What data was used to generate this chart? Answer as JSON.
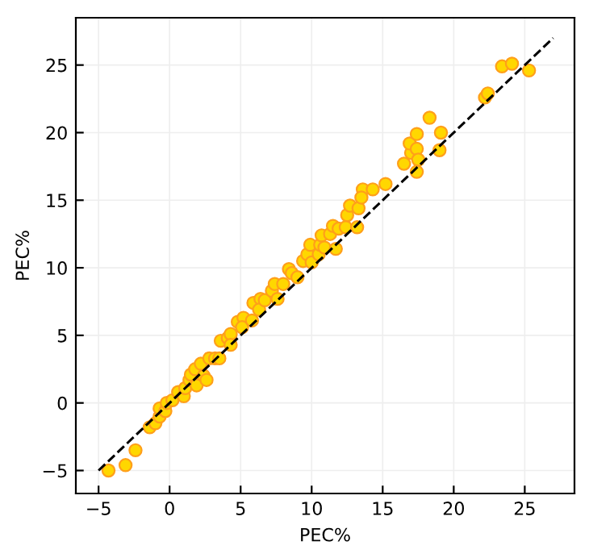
{
  "chart_data": {
    "type": "scatter",
    "xlabel": "PEC%",
    "ylabel": "PEC%",
    "xlim": [
      -6.6,
      28.5
    ],
    "ylim": [
      -6.7,
      28.5
    ],
    "xticks": [
      -5,
      0,
      5,
      10,
      15,
      20,
      25
    ],
    "yticks": [
      -5,
      0,
      5,
      10,
      15,
      20,
      25
    ],
    "grid": true,
    "series": [
      {
        "type": "line",
        "line_style": "dashed",
        "color": "#000000",
        "x": [
          -5,
          27
        ],
        "values": [
          -5,
          27
        ]
      },
      {
        "color": "#ffd700",
        "marker": "circle",
        "x": [
          -4.3,
          -3.1,
          -2.4,
          -1.4,
          -1.0,
          -0.7,
          -0.7,
          -0.3,
          -0.2,
          0.2,
          0.6,
          1.0,
          1.1,
          1.4,
          1.5,
          1.8,
          2.2,
          1.9,
          2.4,
          2.6,
          2.8,
          3.2,
          3.5,
          3.6,
          4.1,
          4.3,
          4.3,
          4.8,
          5.2,
          5.1,
          5.8,
          5.9,
          6.4,
          6.3,
          6.7,
          7.2,
          7.4,
          8.0,
          7.6,
          8.4,
          8.6,
          9.0,
          9.4,
          9.7,
          9.9,
          10.0,
          10.5,
          10.6,
          10.7,
          10.9,
          11.3,
          11.5,
          11.7,
          11.9,
          12.4,
          12.5,
          12.7,
          13.3,
          13.2,
          13.6,
          13.5,
          14.3,
          15.2,
          16.5,
          17.0,
          16.9,
          17.4,
          17.4,
          17.5,
          17.4,
          18.3,
          19.1,
          19.0,
          22.2,
          22.4,
          23.4,
          24.1,
          25.3
        ],
        "values": [
          -5.0,
          -4.6,
          -3.5,
          -1.8,
          -1.5,
          -1.0,
          -0.4,
          -0.6,
          0.0,
          0.2,
          0.8,
          0.5,
          1.1,
          1.7,
          2.1,
          2.5,
          2.9,
          1.3,
          2.0,
          1.7,
          3.3,
          3.3,
          3.3,
          4.6,
          4.8,
          5.1,
          4.3,
          6.0,
          6.3,
          5.6,
          6.1,
          7.4,
          7.7,
          6.9,
          7.6,
          8.3,
          8.8,
          8.8,
          7.7,
          9.9,
          9.6,
          9.3,
          10.5,
          11.0,
          11.7,
          10.4,
          11.0,
          11.7,
          12.4,
          11.5,
          12.5,
          13.1,
          11.4,
          12.9,
          13.0,
          13.9,
          14.6,
          14.4,
          13.0,
          15.8,
          15.2,
          15.8,
          16.2,
          17.7,
          18.5,
          19.2,
          19.9,
          18.8,
          18.0,
          17.1,
          21.1,
          20.0,
          18.7,
          22.6,
          22.9,
          24.9,
          25.1,
          24.6
        ]
      }
    ]
  }
}
